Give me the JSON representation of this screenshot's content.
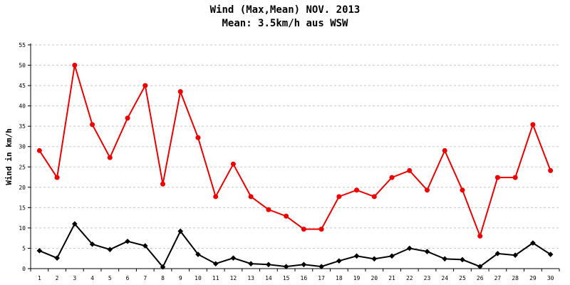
{
  "chart_data": {
    "type": "line",
    "title": "Wind (Max,Mean) NOV. 2013",
    "subtitle": "Mean: 3.5km/h aus WSW",
    "xlabel": "",
    "ylabel": "Wind in km/h",
    "ylim": [
      0,
      55
    ],
    "yticks": [
      0,
      5,
      10,
      15,
      20,
      25,
      30,
      35,
      40,
      45,
      50,
      55
    ],
    "grid": true,
    "categories": [
      "1",
      "2",
      "3",
      "4",
      "5",
      "6",
      "7",
      "8",
      "9",
      "10",
      "11",
      "12",
      "13",
      "14",
      "15",
      "16",
      "17",
      "18",
      "19",
      "20",
      "21",
      "22",
      "23",
      "24",
      "25",
      "26",
      "27",
      "28",
      "29",
      "30"
    ],
    "series": [
      {
        "color": "#ee0000",
        "marker": "circle",
        "values": [
          29,
          22.4,
          50,
          35.4,
          27.3,
          37,
          45,
          20.8,
          43.5,
          32.2,
          17.7,
          25.7,
          17.7,
          14.5,
          12.9,
          9.7,
          9.7,
          17.7,
          19.3,
          17.7,
          22.4,
          24.1,
          19.3,
          29,
          19.3,
          8,
          22.4,
          22.4,
          35.4,
          24.1
        ]
      },
      {
        "color": "#000000",
        "marker": "diamond",
        "values": [
          4.4,
          2.6,
          11,
          6,
          4.7,
          6.7,
          5.6,
          0.4,
          9.2,
          3.5,
          1.2,
          2.6,
          1.2,
          1,
          0.5,
          1,
          0.5,
          1.9,
          3.1,
          2.4,
          3.1,
          5,
          4.2,
          2.4,
          2.2,
          0.5,
          3.7,
          3.3,
          6.3,
          3.5
        ]
      }
    ]
  }
}
